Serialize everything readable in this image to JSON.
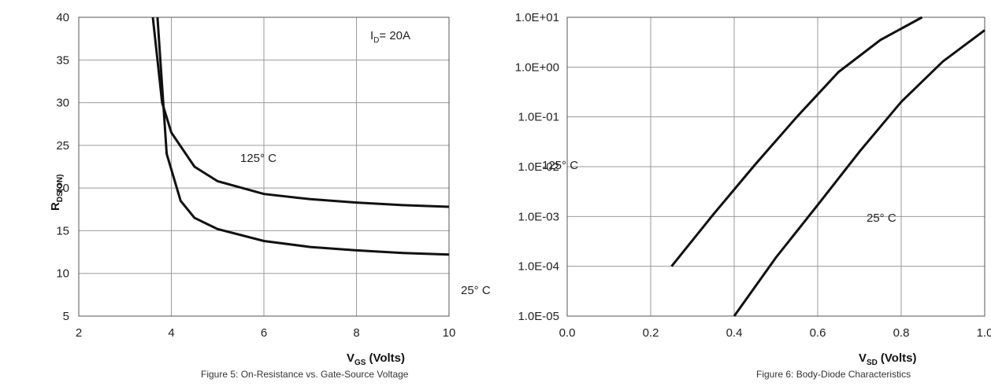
{
  "chart_data": [
    {
      "type": "line",
      "xlabel": "V",
      "xlabel_sub": "GS",
      "xlabel_unit": "(Volts)",
      "ylabel": "R",
      "ylabel_sub": "DS(ON)",
      "y_ticks": [
        "40",
        "35",
        "30",
        "25",
        "20",
        "15",
        "10",
        "5"
      ],
      "x_ticks": [
        "2",
        "4",
        "6",
        "8",
        "10"
      ],
      "xlim": [
        2,
        10
      ],
      "ylim": [
        5,
        40
      ],
      "grid": true,
      "annotations": [
        {
          "text": "I",
          "sub": "D",
          "rest": "= 20A"
        },
        {
          "text": "125° C"
        },
        {
          "text": "25° C"
        }
      ],
      "series": [
        {
          "name": "125° C",
          "x": [
            3.6,
            3.8,
            4.0,
            4.5,
            5,
            6,
            7,
            8,
            9,
            10
          ],
          "y": [
            40,
            30,
            26.5,
            22.5,
            20.8,
            19.3,
            18.7,
            18.3,
            18.0,
            17.8
          ]
        },
        {
          "name": "25° C",
          "x": [
            3.7,
            3.9,
            4.2,
            4.5,
            5,
            6,
            7,
            8,
            9,
            10
          ],
          "y": [
            40,
            24,
            18.5,
            16.5,
            15.2,
            13.8,
            13.1,
            12.7,
            12.4,
            12.2
          ]
        }
      ],
      "caption": "Figure 5: On-Resistance vs. Gate-Source Voltage"
    },
    {
      "type": "line",
      "scale": "log",
      "xlabel": "V",
      "xlabel_sub": "SD",
      "xlabel_unit": "(Volts)",
      "y_ticks": [
        "1.0E+01",
        "1.0E+00",
        "1.0E-01",
        "1.0E-02",
        "1.0E-03",
        "1.0E-04",
        "1.0E-05"
      ],
      "x_ticks": [
        "0.0",
        "0.2",
        "0.4",
        "0.6",
        "0.8",
        "1.0"
      ],
      "xlim": [
        0,
        1.0
      ],
      "ylim": [
        1e-05,
        10
      ],
      "grid": true,
      "annotations": [
        {
          "text": "125° C"
        },
        {
          "text": "25° C"
        }
      ],
      "series": [
        {
          "name": "125° C",
          "x": [
            0.25,
            0.35,
            0.45,
            0.55,
            0.65,
            0.75,
            0.85
          ],
          "y": [
            0.0001,
            0.0011,
            0.011,
            0.1,
            0.8,
            3.5,
            10
          ]
        },
        {
          "name": "25° C",
          "x": [
            0.4,
            0.5,
            0.6,
            0.7,
            0.8,
            0.9,
            1.0
          ],
          "y": [
            1e-05,
            0.00015,
            0.0017,
            0.02,
            0.2,
            1.3,
            5.5
          ]
        }
      ],
      "caption": "Figure 6: Body-Diode Characteristics"
    }
  ]
}
